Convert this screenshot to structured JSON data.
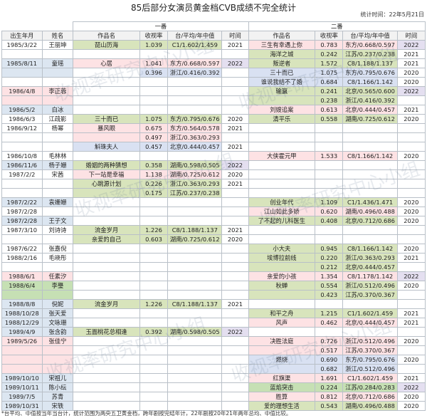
{
  "title": "85后部分女演员黄金档CVB成绩不完全统计",
  "stat_time": "统计时间：22年5月21日",
  "headers": {
    "group1": "一番",
    "group2": "二番",
    "cols": [
      "出生年月",
      "姓名",
      "作品名",
      "收视率",
      "台/平均/年中值",
      "时间",
      "作品名",
      "收视率",
      "台/平均/年中值",
      "时间"
    ]
  },
  "footer": "*台平均、中值按当年当台计，统计范围为两央五卫黄金档，跨年剧按完结年计，22年剧按20年21年两年总均、中值比较。",
  "watermark": "收视率研究中心小组",
  "rows": [
    [
      "1985/3/22",
      "王丽坤",
      "琵山历海",
      "1.039",
      "C1/1.602/1.459",
      "2021",
      "三生有幸遇上你",
      "0.783",
      "东方/0.668/0.597",
      "2022"
    ],
    [
      "",
      "",
      "",
      "",
      "",
      "",
      "海洋之城",
      "0.242",
      "江苏/0.237/0.238",
      "2021"
    ],
    [
      "1985/8/11",
      "童瑶",
      "心居",
      "1.041",
      "东方/0.668/0.597",
      "2022",
      "叛逆者",
      "1.572",
      "C8/1.188/1.137",
      "2021"
    ],
    [
      "",
      "",
      "",
      "0.396",
      "浙江/0.416/0.392",
      "",
      "三十而已",
      "1.075",
      "东方/0.795/0.676",
      "2020"
    ],
    [
      "",
      "",
      "",
      "",
      "",
      "",
      "谁说我结不了婚",
      "0.684",
      "C8/1.166/1.142",
      "2020"
    ],
    [
      "1986/4/8",
      "李正蓉",
      "",
      "",
      "",
      "",
      "输赢",
      "0.241",
      "北京/0.565/0.600",
      "2022"
    ],
    [
      "",
      "",
      "",
      "",
      "",
      "",
      "",
      "0.238",
      "浙江/0.416/0.392",
      ""
    ],
    [
      "1986/5/2",
      "白冰",
      "",
      "",
      "",
      "",
      "刘嫂追案",
      "0.613",
      "北京/0.444/0.457",
      "2021"
    ],
    [
      "1986/6/3",
      "江疏影",
      "三十而已",
      "1.075",
      "东方/0.795/0.676",
      "2020",
      "清平乐",
      "0.558",
      "湖南/0.725/0.612",
      "2020"
    ],
    [
      "1986/9/12",
      "杨幂",
      "暴风眼",
      "0.675",
      "东方/0.564/0.578",
      "2021",
      "",
      "",
      "",
      ""
    ],
    [
      "",
      "",
      "",
      "0.497",
      "浙江/0.363/0.293",
      "",
      "",
      "",
      "",
      ""
    ],
    [
      "",
      "",
      "斛珠夫人",
      "0.457",
      "北京/0.444/0.457",
      "2021",
      "",
      "",
      "",
      ""
    ],
    [
      "1986/10/8",
      "毛林林",
      "",
      "",
      "",
      "",
      "大侠霍元甲",
      "1.533",
      "C8/1.166/1.142",
      "2020"
    ],
    [
      "1986/11/6",
      "杨子姗",
      "婚姻的两种猜想",
      "0.358",
      "湖南/0.598/0.505",
      "2022",
      "",
      "",
      "",
      ""
    ],
    [
      "1987/2/2",
      "宋茜",
      "下一站是幸福",
      "1.138",
      "湖南/0.725/0.612",
      "2020",
      "",
      "",
      "",
      ""
    ],
    [
      "",
      "",
      "心跳源计划",
      "0.226",
      "浙江/0.363/0.293",
      "2021",
      "",
      "",
      "",
      ""
    ],
    [
      "",
      "",
      "",
      "0.175",
      "江苏/0.237/0.238",
      "",
      "",
      "",
      "",
      ""
    ],
    [
      "1987/2/22",
      "袁姗姗",
      "",
      "",
      "",
      "",
      "创业年代",
      "1.109",
      "C1/1.436/1.471",
      "2020"
    ],
    [
      "1987/2/28",
      "",
      "",
      "",
      "",
      "",
      "江山如此多娇",
      "0.620",
      "湖南/0.496/0.488",
      "2020"
    ],
    [
      "1987/2/28",
      "王子文",
      "",
      "",
      "",
      "",
      "了不起的儿科医生",
      "0.408",
      "北京/0.712/0.686",
      "2020"
    ],
    [
      "1987/3/10",
      "刘诗诗",
      "流金岁月",
      "1.226",
      "C8/1.188/1.137",
      "2021",
      "",
      "",
      "",
      ""
    ],
    [
      "",
      "",
      "亲爱的自己",
      "0.603",
      "湖南/0.725/0.612",
      "2020",
      "",
      "",
      "",
      ""
    ],
    [
      "1987/6/22",
      "张嘉倪",
      "",
      "",
      "",
      "",
      "小大夫",
      "0.945",
      "C8/1.166/1.142",
      "2020"
    ],
    [
      "1988/2/16",
      "毛晓彤",
      "",
      "",
      "",
      "",
      "埃博拉前线",
      "0.220",
      "浙江/0.363/0.293",
      "2021"
    ],
    [
      "",
      "",
      "",
      "",
      "",
      "",
      "",
      "0.212",
      "北京/0.444/0.457",
      ""
    ],
    [
      "1988/6/1",
      "任素汐",
      "",
      "",
      "",
      "",
      "亲爱的小孩",
      "1.354",
      "C8/1.178/1.142",
      "2022"
    ],
    [
      "1988/6/4",
      "李璺",
      "",
      "",
      "",
      "",
      "秋蝉",
      "0.554",
      "浙江/0.512/0.496",
      "2020"
    ],
    [
      "",
      "",
      "",
      "",
      "",
      "",
      "",
      "0.423",
      "江苏/0.370/0.367",
      ""
    ],
    [
      "1988/8/8",
      "倪妮",
      "流金岁月",
      "1.226",
      "C8/1.188/1.137",
      "2021",
      "",
      "",
      "",
      ""
    ],
    [
      "1988/10/28",
      "张天爱",
      "",
      "",
      "",
      "",
      "和平之舟",
      "1.215",
      "C1/1.602/1.459",
      "2021"
    ],
    [
      "1988/12/29",
      "文咏珊",
      "",
      "",
      "",
      "",
      "风声",
      "0.462",
      "北京/0.444/0.457",
      "2021"
    ],
    [
      "1989/4/9",
      "张含韵",
      "玉面桃花总相逢",
      "0.392",
      "湖南/0.598/0.505",
      "2022",
      "",
      "",
      "",
      ""
    ],
    [
      "1989/5/26",
      "张佳宁",
      "",
      "",
      "",
      "",
      "决胜法庭",
      "0.726",
      "浙江/0.512/0.496",
      "2020"
    ],
    [
      "",
      "",
      "",
      "",
      "",
      "",
      "",
      "0.517",
      "江苏/0.370/0.367",
      ""
    ],
    [
      "",
      "",
      "",
      "",
      "",
      "",
      "燃烧",
      "0.690",
      "东方/0.795/0.676",
      "2020"
    ],
    [
      "",
      "",
      "",
      "",
      "",
      "",
      "",
      "0.682",
      "浙江/0.512/0.496",
      ""
    ],
    [
      "1989/10/10",
      "宋祖儿",
      "",
      "",
      "",
      "",
      "红旗渠",
      "1.691",
      "C1/1.602/1.459",
      "2021"
    ],
    [
      "1989/10/11",
      "陈小纭",
      "",
      "",
      "",
      "",
      "蓝焰突击",
      "0.224",
      "江苏/0.284/0.283",
      "2022"
    ],
    [
      "1989/7/5",
      "苏青",
      "",
      "",
      "",
      "",
      "胜算",
      "0.812",
      "北京/0.712/0.686",
      "2020"
    ],
    [
      "1989/10/31",
      "宋轶",
      "",
      "",
      "",
      "",
      "爱的理想生活",
      "0.543",
      "湖南/0.496/0.488",
      "2020"
    ]
  ],
  "row_colors": [
    [
      "",
      "",
      "g",
      "g",
      "g",
      "",
      "r",
      "r",
      "r",
      "p"
    ],
    [
      "",
      "",
      "",
      "",
      "",
      "",
      "g",
      "g",
      "g",
      ""
    ],
    [
      "y",
      "y",
      "r",
      "r",
      "r",
      "p",
      "g",
      "g",
      "g",
      ""
    ],
    [
      "y",
      "y",
      "",
      "b",
      "b",
      "",
      "b",
      "b",
      "b",
      ""
    ],
    [
      "",
      "",
      "",
      "",
      "",
      "",
      "b",
      "b",
      "b",
      ""
    ],
    [
      "r",
      "r",
      "",
      "",
      "",
      "",
      "g",
      "g",
      "g",
      "p"
    ],
    [
      "r",
      "r",
      "",
      "",
      "",
      "",
      "g",
      "g",
      "g",
      ""
    ],
    [
      "y",
      "y",
      "",
      "",
      "",
      "",
      "r",
      "r",
      "r",
      ""
    ],
    [
      "",
      "",
      "g",
      "g",
      "g",
      "",
      "g",
      "g",
      "g",
      ""
    ],
    [
      "",
      "",
      "r",
      "r",
      "r",
      "",
      "",
      "",
      "",
      ""
    ],
    [
      "",
      "",
      "r",
      "r",
      "r",
      "",
      "",
      "",
      "",
      ""
    ],
    [
      "",
      "",
      "b",
      "b",
      "b",
      "",
      "",
      "",
      "",
      ""
    ],
    [
      "",
      "",
      "",
      "",
      "",
      "",
      "r",
      "r",
      "r",
      ""
    ],
    [
      "y",
      "y",
      "g",
      "g",
      "g",
      "p",
      "",
      "",
      "",
      ""
    ],
    [
      "",
      "",
      "r",
      "r",
      "r",
      "",
      "",
      "",
      "",
      ""
    ],
    [
      "",
      "",
      "g",
      "g",
      "g",
      "",
      "",
      "",
      "",
      ""
    ],
    [
      "",
      "",
      "g",
      "g",
      "g",
      "",
      "",
      "",
      "",
      ""
    ],
    [
      "y",
      "y",
      "",
      "",
      "",
      "",
      "g",
      "g",
      "g",
      ""
    ],
    [
      "",
      "",
      "",
      "",
      "",
      "",
      "r",
      "r",
      "r",
      ""
    ],
    [
      "y",
      "y",
      "",
      "",
      "",
      "",
      "g",
      "g",
      "g",
      ""
    ],
    [
      "",
      "",
      "g",
      "g",
      "g",
      "",
      "",
      "",
      "",
      ""
    ],
    [
      "",
      "",
      "g",
      "g",
      "g",
      "",
      "",
      "",
      "",
      ""
    ],
    [
      "",
      "",
      "",
      "",
      "",
      "",
      "g",
      "g",
      "g",
      ""
    ],
    [
      "",
      "",
      "",
      "",
      "",
      "",
      "g",
      "g",
      "g",
      ""
    ],
    [
      "",
      "",
      "",
      "",
      "",
      "",
      "g",
      "g",
      "g",
      ""
    ],
    [
      "r",
      "r",
      "",
      "",
      "",
      "",
      "r",
      "r",
      "r",
      "p"
    ],
    [
      "gr",
      "gr",
      "",
      "",
      "",
      "",
      "g",
      "g",
      "g",
      ""
    ],
    [
      "gr",
      "gr",
      "",
      "",
      "",
      "",
      "g",
      "g",
      "g",
      ""
    ],
    [
      "y",
      "y",
      "g",
      "g",
      "g",
      "",
      "",
      "",
      "",
      ""
    ],
    [
      "y",
      "y",
      "",
      "",
      "",
      "",
      "g",
      "g",
      "g",
      ""
    ],
    [
      "y",
      "y",
      "",
      "",
      "",
      "",
      "r",
      "r",
      "r",
      ""
    ],
    [
      "y",
      "y",
      "g",
      "g",
      "g",
      "p",
      "",
      "",
      "",
      ""
    ],
    [
      "r",
      "r",
      "",
      "",
      "",
      "",
      "r",
      "r",
      "r",
      ""
    ],
    [
      "r",
      "r",
      "",
      "",
      "",
      "",
      "r",
      "r",
      "r",
      ""
    ],
    [
      "r",
      "r",
      "",
      "",
      "",
      "",
      "b",
      "b",
      "b",
      ""
    ],
    [
      "r",
      "r",
      "",
      "",
      "",
      "",
      "b",
      "b",
      "b",
      ""
    ],
    [
      "y",
      "y",
      "",
      "",
      "",
      "",
      "r",
      "r",
      "r",
      ""
    ],
    [
      "y",
      "y",
      "",
      "",
      "",
      "",
      "gr",
      "gr",
      "gr",
      "p"
    ],
    [
      "y",
      "y",
      "",
      "",
      "",
      "",
      "r",
      "r",
      "r",
      ""
    ],
    [
      "y",
      "y",
      "",
      "",
      "",
      "",
      "g",
      "g",
      "g",
      ""
    ]
  ]
}
